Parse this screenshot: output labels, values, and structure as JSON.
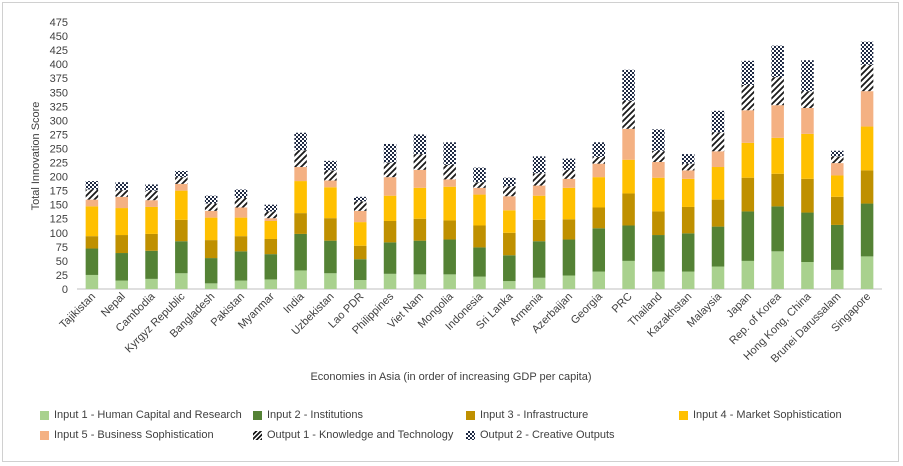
{
  "chart_data": {
    "type": "bar",
    "stacked": true,
    "title": "",
    "xlabel": "Economies in Asia (in order of increasing GDP per capita)",
    "ylabel": "Total Innovation Score",
    "ylim": [
      0,
      475
    ],
    "ytick_step": 25,
    "grid": false,
    "legend_position": "bottom",
    "categories": [
      "Tajikistan",
      "Nepal",
      "Cambodia",
      "Kyrgyz Republic",
      "Bangladesh",
      "Pakistan",
      "Myanmar",
      "India",
      "Uzbekistan",
      "Lao PDR",
      "Philippines",
      "Viet Nam",
      "Mongolia",
      "Indonesia",
      "Sri Lanka",
      "Armenia",
      "Azerbaijan",
      "Georgia",
      "PRC",
      "Thailand",
      "Kazakhstan",
      "Malaysia",
      "Japan",
      "Rep. of Korea",
      "Hong Kong, China",
      "Brunei Darussalam",
      "Singapore"
    ],
    "series": [
      {
        "name": "Input 1 - Human Capital and Research",
        "color": "#a9d18e",
        "pattern": "solid",
        "values": [
          25,
          15,
          18,
          28,
          10,
          15,
          17,
          33,
          28,
          16,
          27,
          26,
          26,
          22,
          14,
          20,
          24,
          31,
          50,
          31,
          31,
          40,
          50,
          67,
          48,
          34,
          58
        ]
      },
      {
        "name": "Input 2 - Institutions",
        "color": "#548235",
        "pattern": "solid",
        "values": [
          47,
          49,
          50,
          57,
          45,
          52,
          45,
          65,
          58,
          37,
          56,
          60,
          62,
          52,
          46,
          65,
          64,
          77,
          63,
          65,
          68,
          71,
          88,
          80,
          88,
          80,
          94
        ]
      },
      {
        "name": "Input 3 - Infrastructure",
        "color": "#bf9000",
        "pattern": "solid",
        "values": [
          22,
          32,
          30,
          38,
          32,
          27,
          27,
          37,
          40,
          24,
          38,
          39,
          34,
          39,
          40,
          38,
          36,
          37,
          57,
          42,
          47,
          48,
          60,
          58,
          60,
          50,
          59
        ]
      },
      {
        "name": "Input 4 - Market Sophistication",
        "color": "#ffc000",
        "pattern": "solid",
        "values": [
          53,
          48,
          48,
          52,
          40,
          33,
          32,
          57,
          55,
          42,
          45,
          55,
          60,
          55,
          40,
          43,
          56,
          54,
          60,
          60,
          50,
          58,
          62,
          64,
          80,
          38,
          78
        ]
      },
      {
        "name": "Input 5 - Business Sophistication",
        "color": "#f4b183",
        "pattern": "solid",
        "values": [
          12,
          20,
          12,
          12,
          12,
          18,
          5,
          25,
          12,
          20,
          33,
          32,
          13,
          12,
          25,
          18,
          16,
          24,
          55,
          28,
          15,
          28,
          58,
          58,
          46,
          22,
          63
        ]
      },
      {
        "name": "Output 1 - Knowledge and Technology",
        "color": "#000000",
        "pattern": "diagonal",
        "values": [
          18,
          12,
          17,
          12,
          13,
          17,
          12,
          30,
          18,
          17,
          26,
          28,
          26,
          10,
          18,
          22,
          16,
          12,
          50,
          20,
          12,
          34,
          45,
          50,
          30,
          12,
          47
        ]
      },
      {
        "name": "Output 2 - Creative Outputs",
        "color": "#1f2a44",
        "pattern": "checker",
        "values": [
          15,
          14,
          11,
          11,
          14,
          15,
          12,
          31,
          17,
          8,
          33,
          35,
          40,
          26,
          15,
          30,
          20,
          26,
          55,
          38,
          17,
          38,
          43,
          56,
          55,
          10,
          41
        ]
      }
    ]
  }
}
